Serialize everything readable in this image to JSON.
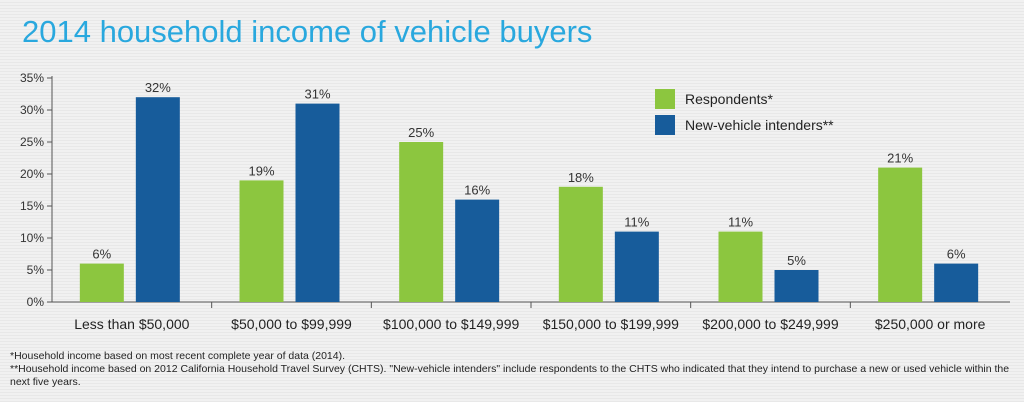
{
  "chart_data": {
    "type": "bar",
    "title": "2014 household income of vehicle buyers",
    "categories": [
      "Less than $50,000",
      "$50,000 to $99,999",
      "$100,000 to $149,999",
      "$150,000 to $199,999",
      "$200,000 to $249,999",
      "$250,000 or more"
    ],
    "series": [
      {
        "name": "Respondents*",
        "color": "#8cc63f",
        "values": [
          6,
          19,
          25,
          18,
          11,
          21
        ]
      },
      {
        "name": "New-vehicle intenders**",
        "color": "#175c9b",
        "values": [
          32,
          31,
          16,
          11,
          5,
          6
        ]
      }
    ],
    "yticks": [
      "0%",
      "5%",
      "10%",
      "15%",
      "20%",
      "25%",
      "30%",
      "35%"
    ],
    "ylim": [
      0,
      35
    ],
    "value_suffix": "%",
    "legend": "top-right",
    "grid": false
  },
  "footnotes": {
    "note1": "*Household income based on most recent complete year of data (2014).",
    "note2": "**Household income based on 2012 California Household Travel Survey (CHTS). \"New-vehicle intenders\" include respondents to the CHTS who indicated that they intend to purchase a new or used vehicle within the next five years."
  }
}
